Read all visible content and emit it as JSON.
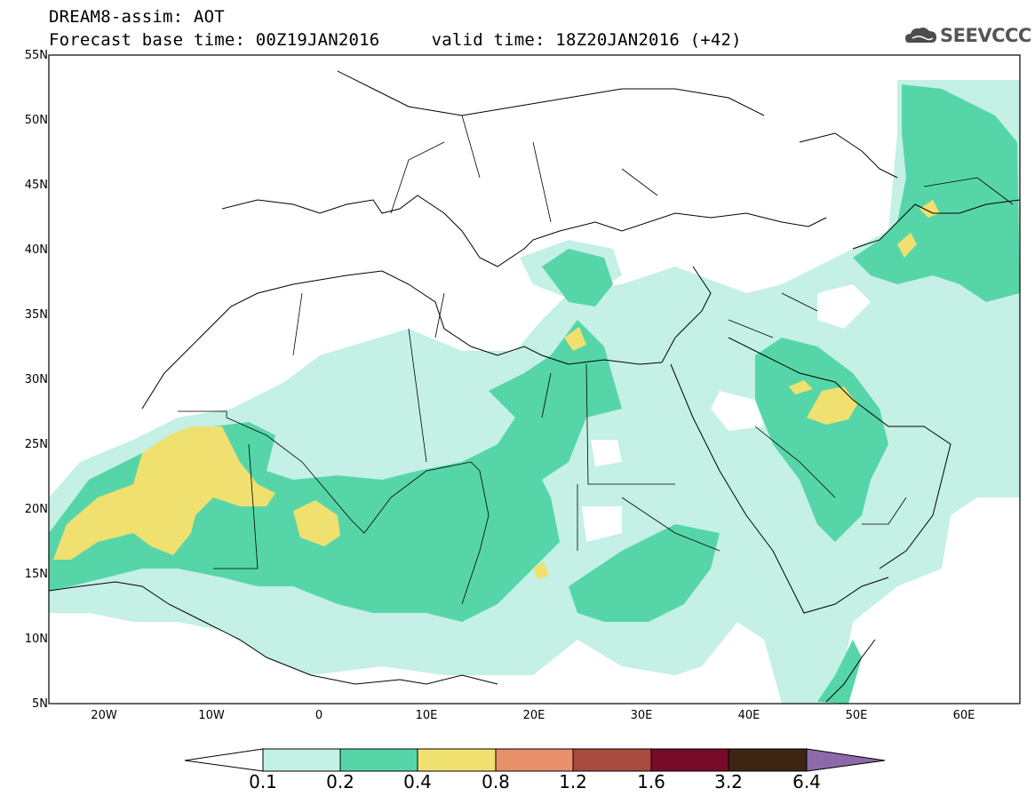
{
  "header": {
    "line1": "DREAM8-assim: AOT",
    "line2": "Forecast base time: 00Z19JAN2016     valid time: 18Z20JAN2016 (+42)"
  },
  "logo": {
    "text": "SEEVCCC",
    "icon": "cloud-icon"
  },
  "map": {
    "lat_labels": [
      "55N",
      "50N",
      "45N",
      "40N",
      "35N",
      "30N",
      "25N",
      "20N",
      "15N",
      "10N",
      "5N"
    ],
    "lon_labels": [
      "20W",
      "10W",
      "0",
      "10E",
      "20E",
      "30E",
      "40E",
      "50E",
      "60E"
    ],
    "colors": {
      "level_0_1": "#c4f0e6",
      "level_0_2": "#56d6a8",
      "level_0_4": "#f0e070",
      "level_0_8": "#e8906a",
      "level_1_2": "#a84a3e",
      "level_1_6": "#780a2a",
      "level_3_2": "#3d2514",
      "level_6_4": "#8c6aaa"
    }
  },
  "colorbar": {
    "labels": [
      "0.1",
      "0.2",
      "0.4",
      "0.8",
      "1.2",
      "1.6",
      "3.2",
      "6.4"
    ]
  }
}
